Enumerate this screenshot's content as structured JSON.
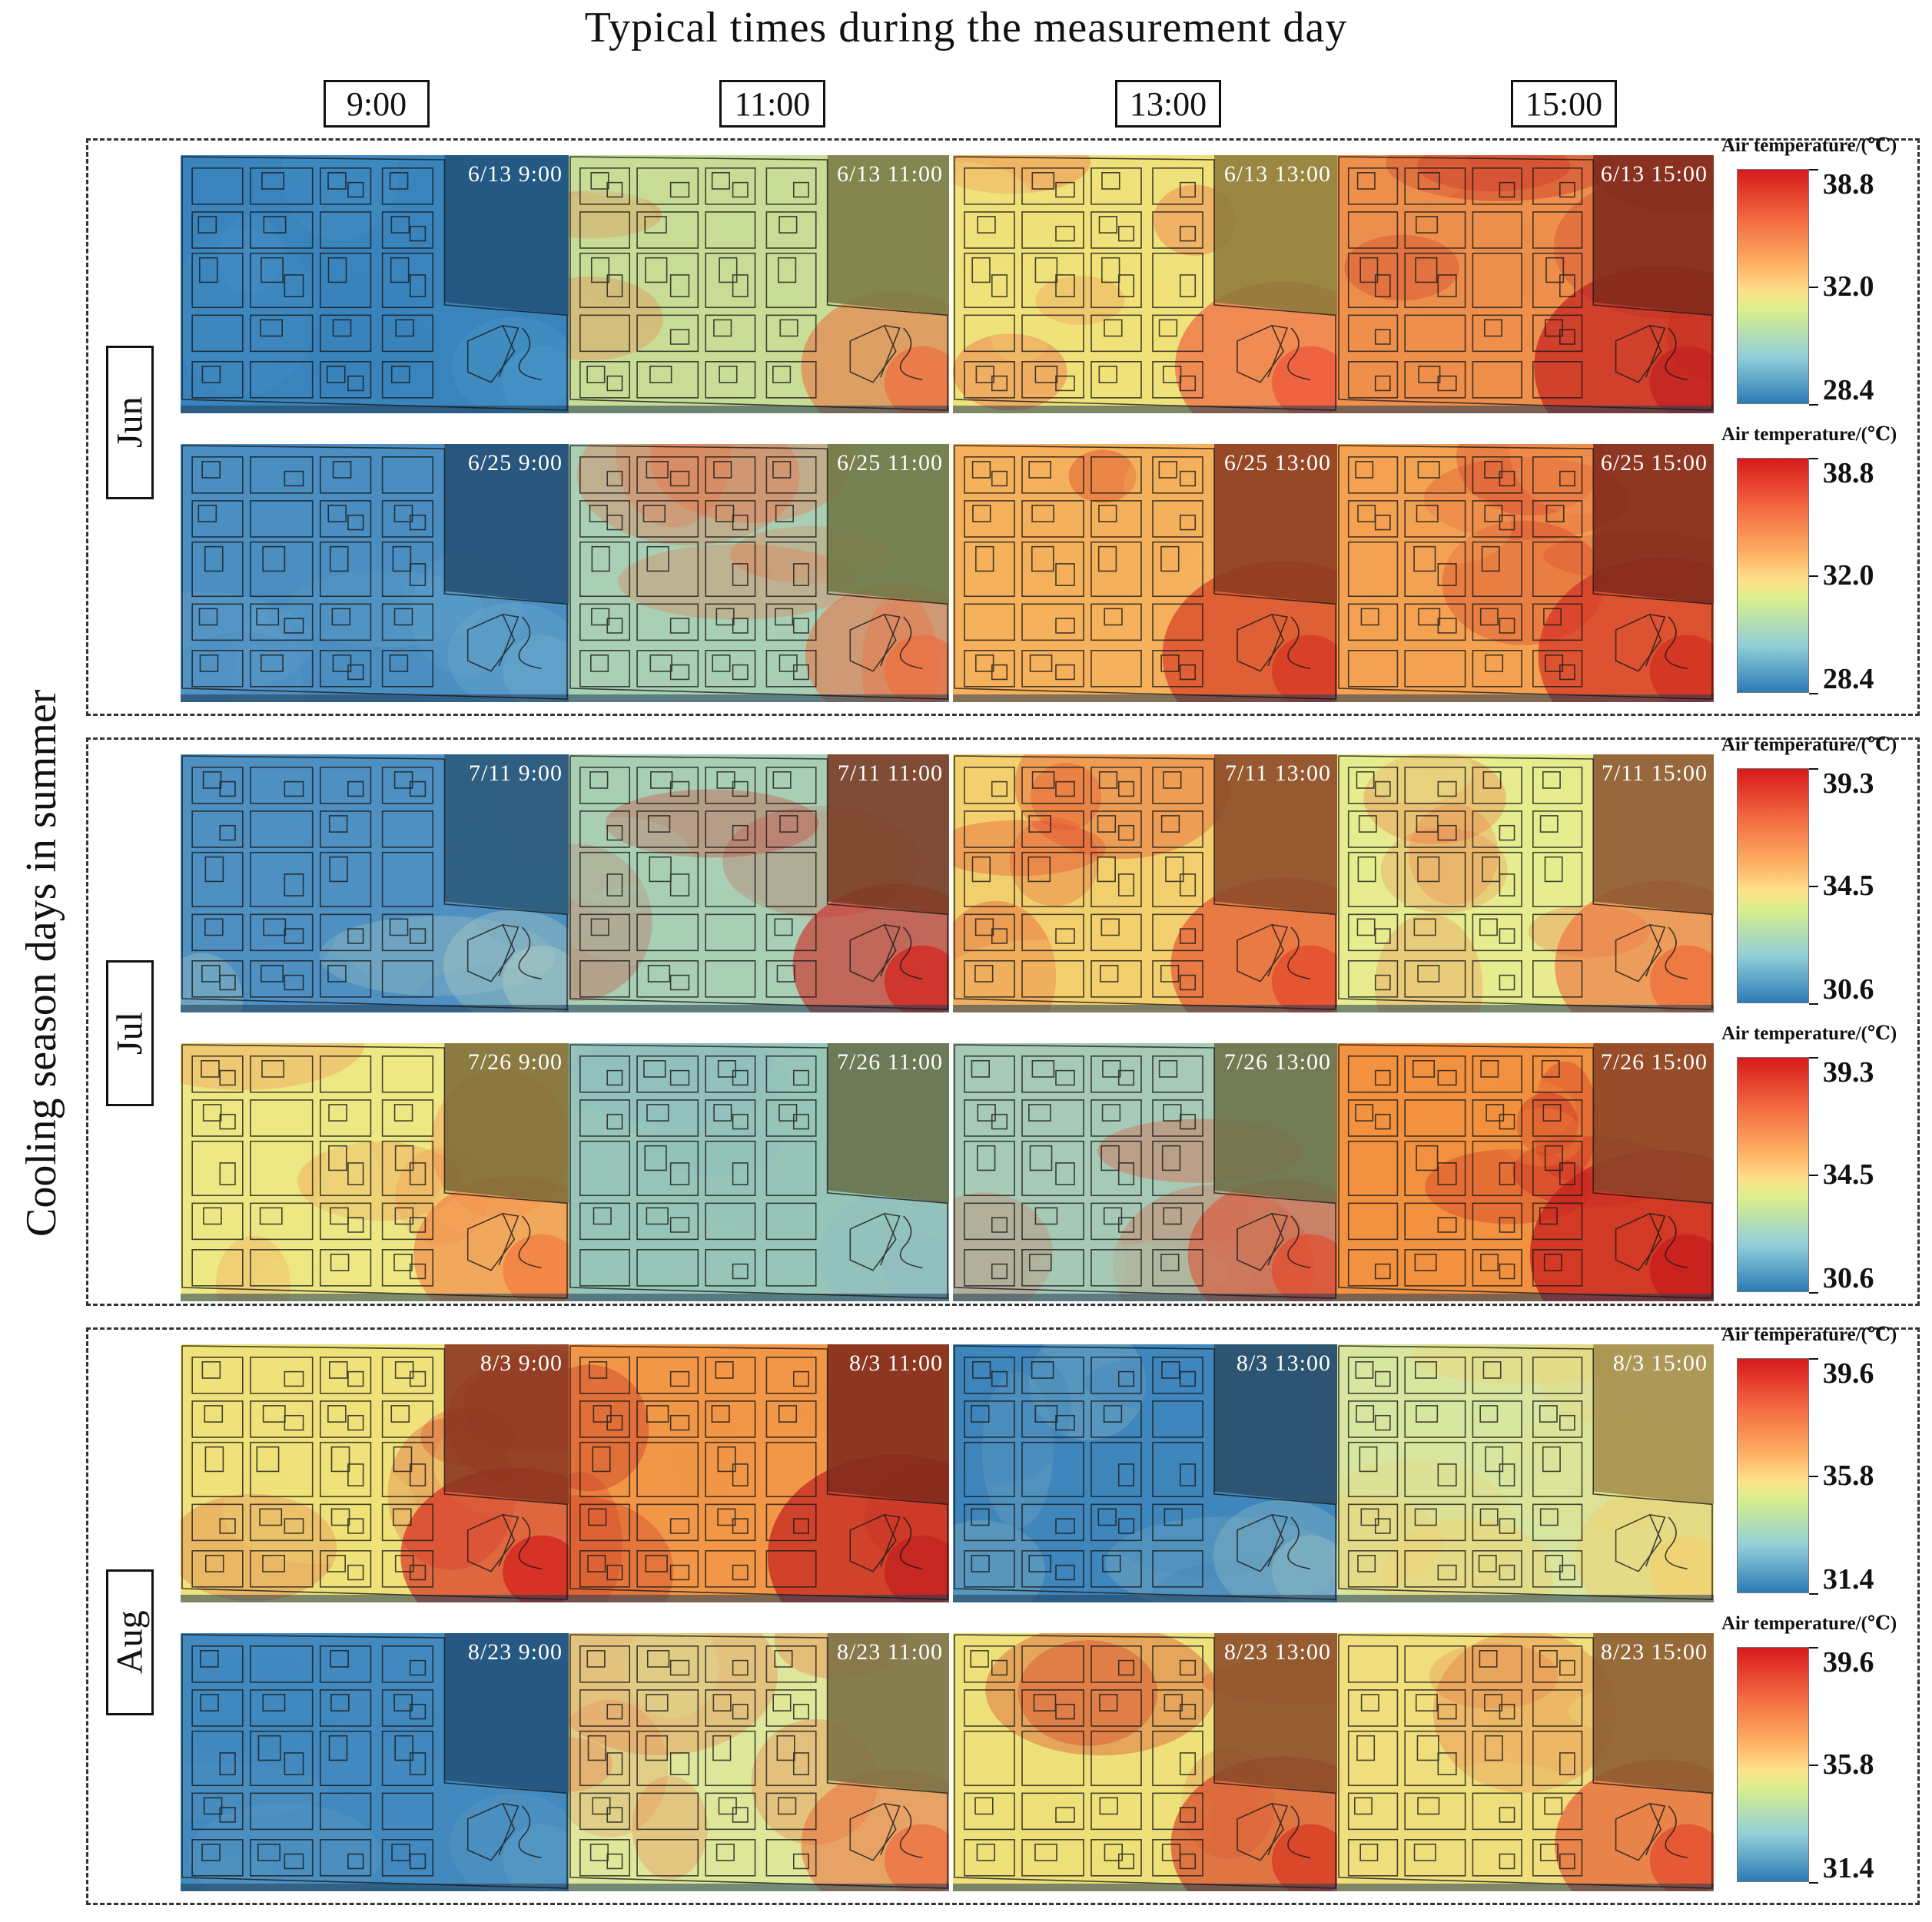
{
  "title": "Typical times during the measurement day",
  "y_axis_label": "Cooling season days in summer",
  "time_labels": [
    "9:00",
    "11:00",
    "13:00",
    "15:00"
  ],
  "months": [
    {
      "label": "Jun",
      "colorbar": {
        "title": "Air temperature/(℃)",
        "max": "38.8",
        "mid": "32.0",
        "min": "28.4"
      },
      "rows": [
        {
          "panels": [
            {
              "label": "6/13 9:00",
              "base": "#3a84bd",
              "hot": "#4a95c7",
              "corner": "#21527a",
              "intensity": 0.05
            },
            {
              "label": "6/13 11:00",
              "base": "#c8dd96",
              "hot": "#ef6c3c",
              "corner": "#7a7a45",
              "intensity": 0.45
            },
            {
              "label": "6/13 13:00",
              "base": "#f0e27a",
              "hot": "#f0553b",
              "corner": "#8c7a3a",
              "intensity": 0.6
            },
            {
              "label": "6/13 15:00",
              "base": "#ee8f4c",
              "hot": "#c42420",
              "corner": "#7e2a1c",
              "intensity": 0.85
            }
          ]
        },
        {
          "panels": [
            {
              "label": "6/25 9:00",
              "base": "#4a8ec2",
              "hot": "#6aa8cc",
              "corner": "#244f72",
              "intensity": 0.1
            },
            {
              "label": "6/25 11:00",
              "base": "#a9cfb4",
              "hot": "#ef6c3c",
              "corner": "#6f7744",
              "intensity": 0.4
            },
            {
              "label": "6/25 13:00",
              "base": "#f5b15c",
              "hot": "#d63a24",
              "corner": "#8a3a20",
              "intensity": 0.75
            },
            {
              "label": "6/25 15:00",
              "base": "#f4a252",
              "hot": "#d33123",
              "corner": "#80281b",
              "intensity": 0.8
            }
          ]
        }
      ]
    },
    {
      "label": "Jul",
      "colorbar": {
        "title": "Air temperature/(℃)",
        "max": "39.3",
        "mid": "34.5",
        "min": "30.6"
      },
      "rows": [
        {
          "panels": [
            {
              "label": "7/11 9:00",
              "base": "#4f90c2",
              "hot": "#a6c8c0",
              "corner": "#2b5878",
              "intensity": 0.15
            },
            {
              "label": "7/11 11:00",
              "base": "#a9cfb4",
              "hot": "#d4221d",
              "corner": "#7a3a24",
              "intensity": 0.55
            },
            {
              "label": "7/11 13:00",
              "base": "#f3cf6d",
              "hot": "#e44a2c",
              "corner": "#8a4a28",
              "intensity": 0.65
            },
            {
              "label": "7/11 15:00",
              "base": "#e7ec8e",
              "hot": "#ef6c3c",
              "corner": "#8c5530",
              "intensity": 0.6
            }
          ]
        },
        {
          "panels": [
            {
              "label": "7/26 9:00",
              "base": "#eee884",
              "hot": "#f4793f",
              "corner": "#7d6a38",
              "intensity": 0.5
            },
            {
              "label": "7/26 11:00",
              "base": "#97c6b9",
              "hot": "#8fbdc0",
              "corner": "#66704a",
              "intensity": 0.25
            },
            {
              "label": "7/26 13:00",
              "base": "#a7cab6",
              "hot": "#e44a2c",
              "corner": "#6c7048",
              "intensity": 0.45
            },
            {
              "label": "7/26 15:00",
              "base": "#f2913f",
              "hot": "#c81f1d",
              "corner": "#8a4228",
              "intensity": 0.9
            }
          ]
        }
      ]
    },
    {
      "label": "Aug",
      "colorbar": {
        "title": "Air temperature/(℃)",
        "max": "39.6",
        "mid": "35.8",
        "min": "31.4"
      },
      "rows": [
        {
          "panels": [
            {
              "label": "8/3 9:00",
              "base": "#f0e27a",
              "hot": "#d4221d",
              "corner": "#8a3420",
              "intensity": 0.65
            },
            {
              "label": "8/3 11:00",
              "base": "#f29747",
              "hot": "#c42420",
              "corner": "#7e2a1c",
              "intensity": 0.85
            },
            {
              "label": "8/3 13:00",
              "base": "#3f86bd",
              "hot": "#88b6c2",
              "corner": "#2b4e66",
              "intensity": 0.15
            },
            {
              "label": "8/3 15:00",
              "base": "#d8e6a0",
              "hot": "#f2d06d",
              "corner": "#a58e4c",
              "intensity": 0.35
            }
          ]
        },
        {
          "panels": [
            {
              "label": "8/23 9:00",
              "base": "#4189be",
              "hot": "#5a9ac4",
              "corner": "#22517a",
              "intensity": 0.08
            },
            {
              "label": "8/23 11:00",
              "base": "#dee79a",
              "hot": "#ef6c3c",
              "corner": "#7b7044",
              "intensity": 0.45
            },
            {
              "label": "8/23 13:00",
              "base": "#eee17a",
              "hot": "#d63a24",
              "corner": "#8a4a28",
              "intensity": 0.65
            },
            {
              "label": "8/23 15:00",
              "base": "#f0df7c",
              "hot": "#e44a2c",
              "corner": "#8a5a30",
              "intensity": 0.6
            }
          ]
        }
      ]
    }
  ]
}
